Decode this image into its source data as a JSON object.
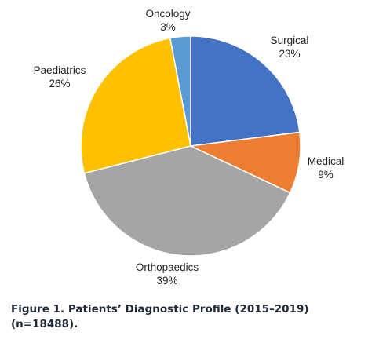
{
  "chart_data": {
    "type": "pie",
    "slices": [
      {
        "name": "Surgical",
        "value": 23,
        "label": "23%",
        "color": "#4472c4"
      },
      {
        "name": "Medical",
        "value": 9,
        "label": "9%",
        "color": "#ed7d31"
      },
      {
        "name": "Orthopaedics",
        "value": 39,
        "label": "39%",
        "color": "#a5a5a5"
      },
      {
        "name": "Paediatrics",
        "value": 26,
        "label": "26%",
        "color": "#ffc000"
      },
      {
        "name": "Oncology",
        "value": 3,
        "label": "3%",
        "color": "#5b9bd5"
      }
    ],
    "start": "12 o'clock",
    "direction": "clockwise",
    "legend": "none"
  },
  "caption": {
    "line1": "Figure 1. Patients’ Diagnostic Profile (2015–2019)",
    "line2": "(n=18488)."
  }
}
